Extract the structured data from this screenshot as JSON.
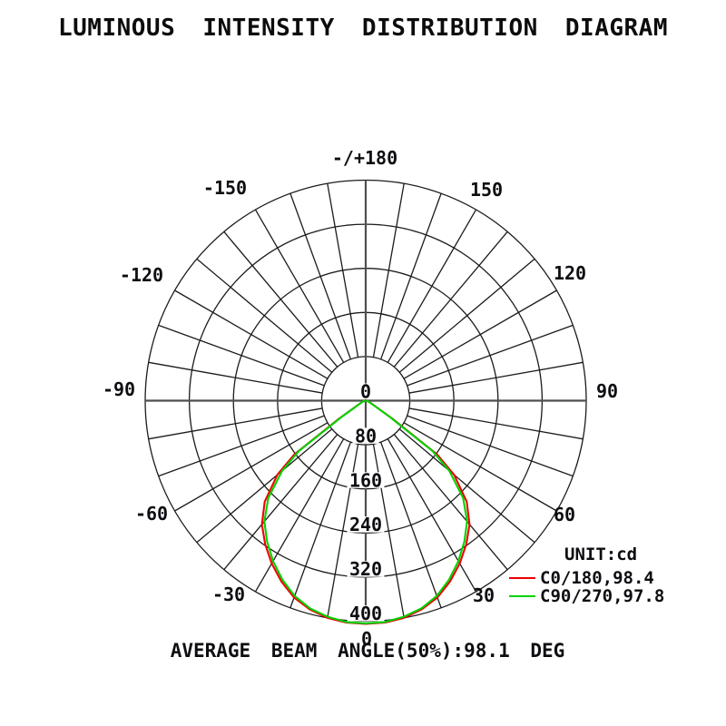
{
  "title": "LUMINOUS INTENSITY DISTRIBUTION DIAGRAM",
  "footer": "AVERAGE BEAM ANGLE(50%):98.1 DEG",
  "legend": {
    "unit_label": "UNIT:cd",
    "series": [
      {
        "name": "C0/180",
        "label": "C0/180,98.4",
        "color": "#ef0000"
      },
      {
        "name": "C90/270",
        "label": "C90/270,97.8",
        "color": "#00d300"
      }
    ]
  },
  "chart_data": {
    "type": "line",
    "subtype": "polar-intensity-distribution",
    "title": "LUMINOUS INTENSITY DISTRIBUTION DIAGRAM",
    "unit": "cd",
    "radial_ticks": [
      0,
      80,
      160,
      240,
      320,
      400
    ],
    "radial_max": 400,
    "angle_grid_step_deg": 10,
    "angle_ticks": [
      {
        "angle_deg": 0,
        "label": "0"
      },
      {
        "angle_deg": 30,
        "label": "30"
      },
      {
        "angle_deg": 60,
        "label": "60"
      },
      {
        "angle_deg": 90,
        "label": "90"
      },
      {
        "angle_deg": 120,
        "label": "120"
      },
      {
        "angle_deg": 150,
        "label": "150"
      },
      {
        "angle_deg": 180,
        "label": "-/+180"
      },
      {
        "angle_deg": -150,
        "label": "-150"
      },
      {
        "angle_deg": -120,
        "label": "-120"
      },
      {
        "angle_deg": -90,
        "label": "-90"
      },
      {
        "angle_deg": -60,
        "label": "-60"
      },
      {
        "angle_deg": -30,
        "label": "-30"
      }
    ],
    "average_beam_angle_50pct_deg": 98.1,
    "series": [
      {
        "name": "C0/180",
        "beam_angle_deg": 98.4,
        "color": "#ef0000",
        "points_angle_cd": [
          [
            0,
            405
          ],
          [
            5,
            404
          ],
          [
            10,
            400
          ],
          [
            15,
            392
          ],
          [
            20,
            380
          ],
          [
            25,
            362
          ],
          [
            30,
            341
          ],
          [
            35,
            318
          ],
          [
            40,
            293
          ],
          [
            45,
            259
          ],
          [
            50,
            209
          ],
          [
            53,
            162
          ],
          [
            56,
            58
          ],
          [
            60,
            19
          ],
          [
            65,
            10
          ],
          [
            70,
            6
          ],
          [
            75,
            4
          ],
          [
            80,
            2
          ],
          [
            85,
            1
          ],
          [
            90,
            0
          ]
        ]
      },
      {
        "name": "C90/270",
        "beam_angle_deg": 97.8,
        "color": "#00d300",
        "points_angle_cd": [
          [
            0,
            404
          ],
          [
            5,
            403
          ],
          [
            10,
            398
          ],
          [
            15,
            390
          ],
          [
            20,
            377
          ],
          [
            25,
            358
          ],
          [
            30,
            336
          ],
          [
            35,
            312
          ],
          [
            40,
            286
          ],
          [
            45,
            250
          ],
          [
            50,
            198
          ],
          [
            53,
            152
          ],
          [
            56,
            52
          ],
          [
            60,
            17
          ],
          [
            65,
            9
          ],
          [
            70,
            6
          ],
          [
            75,
            4
          ],
          [
            80,
            2
          ],
          [
            85,
            1
          ],
          [
            90,
            0
          ]
        ]
      }
    ]
  }
}
